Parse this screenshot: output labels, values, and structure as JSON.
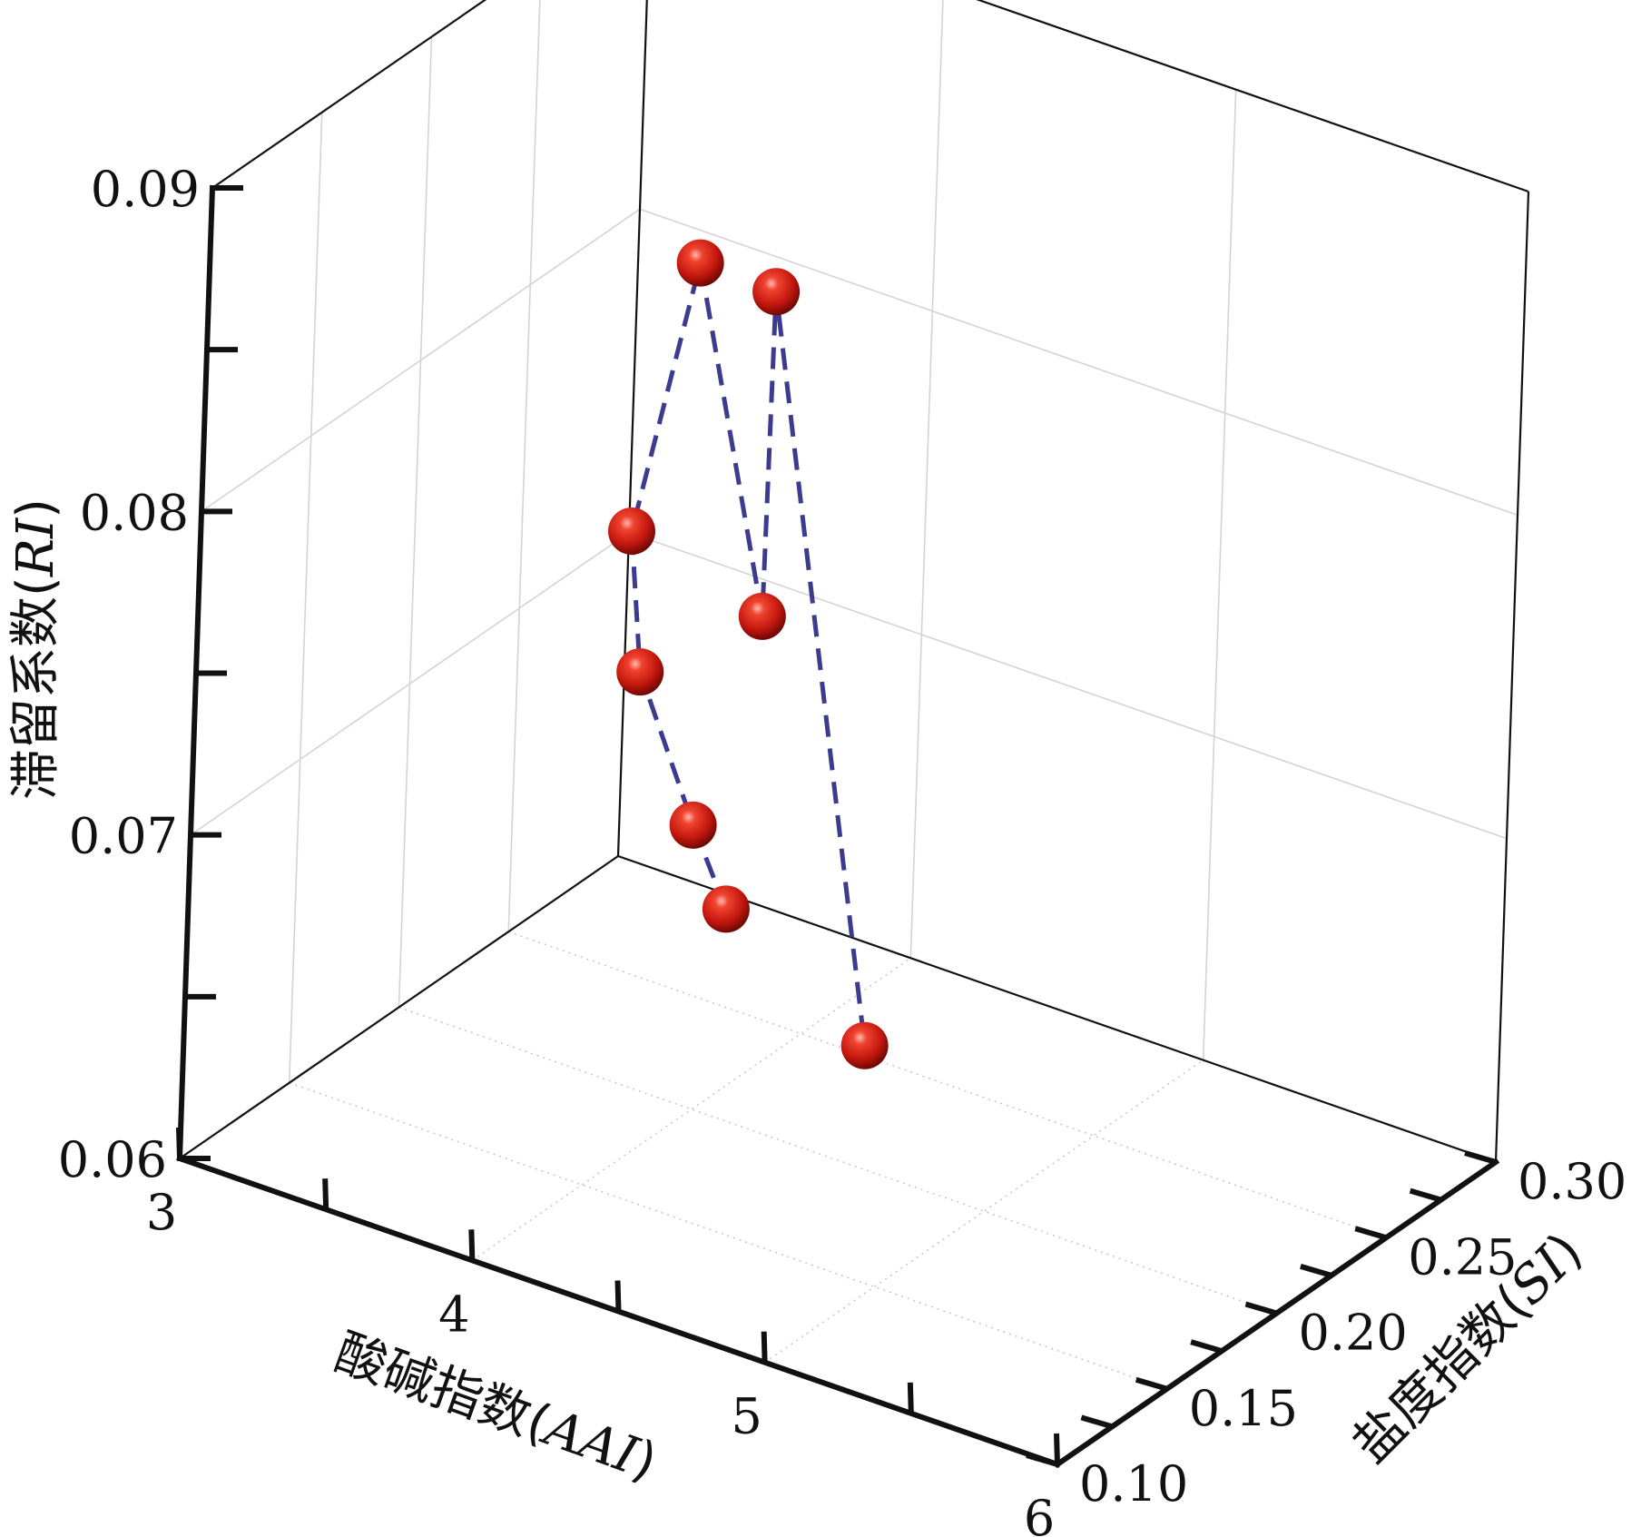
{
  "chart_data": {
    "type": "scatter",
    "subtype": "3d-scatter-line",
    "title": "",
    "xlabel": {
      "prefix": "酸碱指数",
      "symbol": "AAI"
    },
    "ylabel": {
      "prefix": "盐度指数",
      "symbol": "SI"
    },
    "zlabel": {
      "prefix": "滞留系数",
      "symbol": "RI"
    },
    "xlim": [
      3,
      6
    ],
    "ylim": [
      0.1,
      0.3
    ],
    "zlim": [
      0.06,
      0.09
    ],
    "x_ticks": [
      {
        "v": 3,
        "label": "3"
      },
      {
        "v": 4,
        "label": "4"
      },
      {
        "v": 5,
        "label": "5"
      },
      {
        "v": 6,
        "label": "6"
      }
    ],
    "y_ticks": [
      {
        "v": 0.1,
        "label": "0.10"
      },
      {
        "v": 0.15,
        "label": "0.15"
      },
      {
        "v": 0.2,
        "label": "0.20"
      },
      {
        "v": 0.25,
        "label": "0.25"
      },
      {
        "v": 0.3,
        "label": "0.30"
      }
    ],
    "z_ticks": [
      {
        "v": 0.06,
        "label": "0.06"
      },
      {
        "v": 0.07,
        "label": "0.07"
      },
      {
        "v": 0.08,
        "label": "0.08"
      },
      {
        "v": 0.09,
        "label": "0.09"
      }
    ],
    "points": [
      {
        "x": 4.47,
        "y": 0.148,
        "z": 0.0701
      },
      {
        "x": 4.4,
        "y": 0.141,
        "z": 0.0728
      },
      {
        "x": 4.16,
        "y": 0.147,
        "z": 0.0765
      },
      {
        "x": 4.0,
        "y": 0.163,
        "z": 0.0796
      },
      {
        "x": 3.97,
        "y": 0.195,
        "z": 0.0863
      },
      {
        "x": 4.4,
        "y": 0.17,
        "z": 0.0779
      },
      {
        "x": 4.07,
        "y": 0.217,
        "z": 0.0847
      },
      {
        "x": 4.86,
        "y": 0.161,
        "z": 0.0665
      }
    ],
    "grid": true,
    "marker": "sphere",
    "marker_color": "#d7261e",
    "line_color": "#3b3b8f",
    "line_style": "dashed"
  }
}
